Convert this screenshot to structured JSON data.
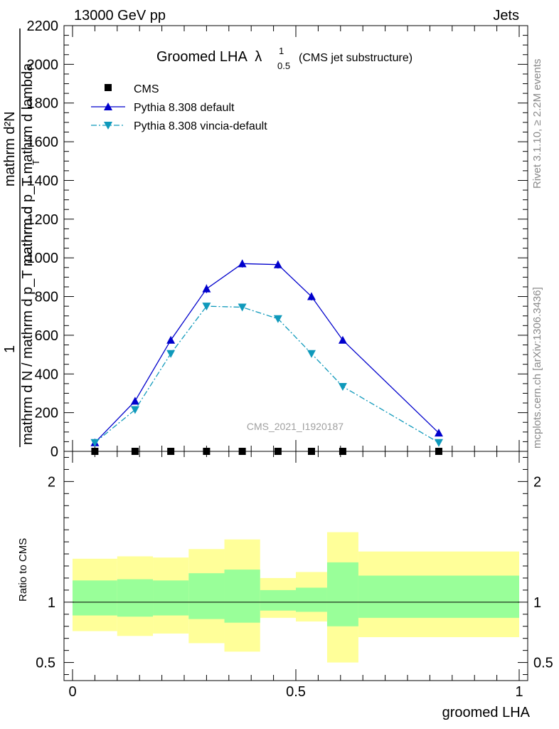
{
  "header": {
    "left": "13000 GeV pp",
    "right": "Jets"
  },
  "side_labels": {
    "rivet": "Rivet 3.1.10, ≥ 2.2M events",
    "mcplots": "mcplots.cern.ch [arXiv:1306.3436]"
  },
  "watermark": "CMS_2021_I1920187",
  "chart_data": [
    {
      "type": "line",
      "title": "Groomed LHA",
      "title_symbol": "λ",
      "title_sup": "1",
      "title_sub": "0.5",
      "title_suffix": "(CMS jet substructure)",
      "ylabel_num": "mathrm d²N",
      "ylabel_num_small": "1",
      "ylabel_den": "mathrm d p_T mathrm d lambda",
      "ylabel_den2": "mathrm d N / mathrm d p_T mathrm d",
      "ylabel_den_sub": "T",
      "xlim": [
        0,
        1
      ],
      "ylim": [
        0,
        2200
      ],
      "y_ticks": [
        "0",
        "200",
        "400",
        "600",
        "800",
        "1000",
        "1200",
        "1400",
        "1600",
        "1800",
        "2000",
        "2200"
      ],
      "legend_placement": "top-left",
      "series": [
        {
          "name": "CMS",
          "color": "#000000",
          "marker": "square",
          "x": [
            0.05,
            0.14,
            0.22,
            0.3,
            0.38,
            0.46,
            0.535,
            0.605,
            0.82
          ],
          "y": [
            0,
            0,
            0,
            0,
            0,
            0,
            0,
            0,
            0
          ]
        },
        {
          "name": "Pythia 8.308 default",
          "color": "#0000cc",
          "marker": "triangle-up",
          "line": "solid",
          "x": [
            0.05,
            0.14,
            0.22,
            0.3,
            0.38,
            0.46,
            0.535,
            0.605,
            0.82
          ],
          "y": [
            45,
            260,
            575,
            840,
            970,
            965,
            800,
            575,
            95
          ],
          "err": [
            5,
            12,
            18,
            22,
            20,
            20,
            20,
            15,
            8
          ]
        },
        {
          "name": "Pythia 8.308 vincia-default",
          "color": "#0f99bb",
          "marker": "triangle-down",
          "line": "dashdot",
          "x": [
            0.05,
            0.14,
            0.22,
            0.3,
            0.38,
            0.46,
            0.535,
            0.605,
            0.82
          ],
          "y": [
            45,
            215,
            505,
            750,
            745,
            685,
            505,
            335,
            45
          ]
        }
      ]
    },
    {
      "type": "area",
      "ylabel": "Ratio to CMS",
      "xlabel": "groomed LHA",
      "xlim": [
        0,
        1
      ],
      "ylim": [
        0.35,
        2.25
      ],
      "x_ticks": [
        "0",
        "0.5",
        "1"
      ],
      "y_ticks": [
        "0.5",
        "1",
        "2"
      ],
      "reference_line": 1,
      "bands": [
        {
          "x0": 0.0,
          "x1": 0.1,
          "outer": [
            0.76,
            1.36
          ],
          "inner": [
            0.89,
            1.18
          ]
        },
        {
          "x0": 0.1,
          "x1": 0.18,
          "outer": [
            0.72,
            1.38
          ],
          "inner": [
            0.88,
            1.19
          ]
        },
        {
          "x0": 0.18,
          "x1": 0.26,
          "outer": [
            0.74,
            1.37
          ],
          "inner": [
            0.89,
            1.18
          ]
        },
        {
          "x0": 0.26,
          "x1": 0.34,
          "outer": [
            0.66,
            1.44
          ],
          "inner": [
            0.86,
            1.24
          ]
        },
        {
          "x0": 0.34,
          "x1": 0.42,
          "outer": [
            0.59,
            1.52
          ],
          "inner": [
            0.83,
            1.27
          ]
        },
        {
          "x0": 0.42,
          "x1": 0.5,
          "outer": [
            0.87,
            1.2
          ],
          "inner": [
            0.93,
            1.1
          ]
        },
        {
          "x0": 0.5,
          "x1": 0.57,
          "outer": [
            0.84,
            1.25
          ],
          "inner": [
            0.92,
            1.12
          ]
        },
        {
          "x0": 0.57,
          "x1": 0.64,
          "outer": [
            0.5,
            1.58
          ],
          "inner": [
            0.8,
            1.33
          ]
        },
        {
          "x0": 0.64,
          "x1": 1.0,
          "outer": [
            0.71,
            1.42
          ],
          "inner": [
            0.87,
            1.22
          ]
        }
      ],
      "band_colors": {
        "outer": "#ffff99",
        "inner": "#99ff99"
      }
    }
  ]
}
